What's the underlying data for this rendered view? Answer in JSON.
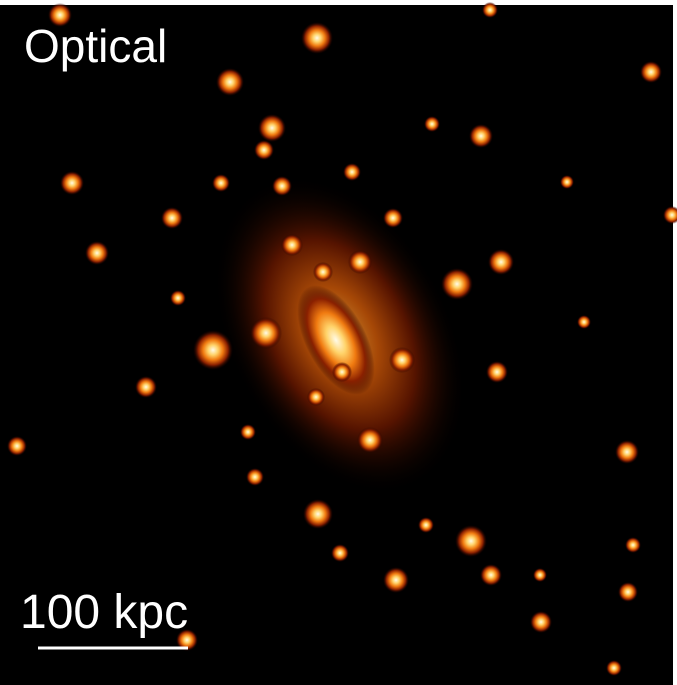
{
  "image": {
    "label": "Optical",
    "scale_bar": {
      "label": "100 kpc"
    }
  }
}
